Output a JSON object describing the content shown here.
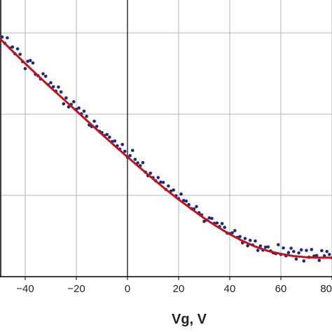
{
  "chart_data": {
    "type": "scatter",
    "title": "",
    "xlabel": "Vg, V",
    "ylabel": "",
    "xlim": [
      -50,
      80
    ],
    "ylim": [
      0,
      1
    ],
    "grid": true,
    "x_ticks": [
      -40,
      -20,
      0,
      20,
      40,
      60,
      80
    ],
    "x_tick_labels": [
      "−40",
      "−20",
      "0",
      "20",
      "40",
      "60",
      "80"
    ],
    "y_gridlines": [
      0.0,
      0.3,
      0.6,
      0.9
    ],
    "colors": {
      "points": "#1f2a7a",
      "fit": "#c0141c",
      "grid": "#b5b5b5",
      "axes": "#000000"
    },
    "series": [
      {
        "kind": "points",
        "x": [
          -50,
          -49,
          -48,
          -47,
          -46,
          -45,
          -44,
          -43,
          -42,
          -41,
          -40,
          -39,
          -38,
          -37,
          -36,
          -35,
          -34,
          -33,
          -32,
          -31,
          -30,
          -29,
          -28,
          -27,
          -26,
          -25,
          -24,
          -23,
          -22,
          -21,
          -20,
          -19,
          -18,
          -17,
          -16,
          -15,
          -14,
          -13,
          -12,
          -11,
          -10,
          -9,
          -8,
          -7,
          -6,
          -5,
          -4,
          -3,
          -2,
          -1,
          0,
          1,
          2,
          3,
          4,
          5,
          6,
          7,
          8,
          9,
          10,
          11,
          12,
          13,
          14,
          15,
          16,
          17,
          18,
          19,
          20,
          21,
          22,
          23,
          24,
          25,
          26,
          27,
          28,
          29,
          30,
          31,
          32,
          33,
          34,
          35,
          36,
          37,
          38,
          39,
          40,
          41,
          42,
          43,
          44,
          45,
          46,
          47,
          48,
          49,
          50,
          51,
          52,
          53,
          54,
          55,
          56,
          57,
          58,
          59,
          60,
          61,
          62,
          63,
          64,
          65,
          66,
          67,
          68,
          69,
          70,
          71,
          72,
          73,
          74,
          75,
          76,
          77,
          78,
          79,
          80
        ],
        "y": [
          0.853,
          0.885,
          0.862,
          0.882,
          0.844,
          0.848,
          0.823,
          0.841,
          0.821,
          0.794,
          0.768,
          0.795,
          0.798,
          0.789,
          0.747,
          0.742,
          0.73,
          0.749,
          0.74,
          0.709,
          0.716,
          0.701,
          0.685,
          0.7,
          0.682,
          0.638,
          0.66,
          0.627,
          0.636,
          0.646,
          0.618,
          0.623,
          0.601,
          0.611,
          0.592,
          0.56,
          0.554,
          0.574,
          0.555,
          0.537,
          0.532,
          0.521,
          0.525,
          0.515,
          0.499,
          0.501,
          0.483,
          0.471,
          0.488,
          0.463,
          0.441,
          0.447,
          0.466,
          0.433,
          0.42,
          0.41,
          0.421,
          0.386,
          0.373,
          0.382,
          0.366,
          0.354,
          0.366,
          0.349,
          0.348,
          0.322,
          0.335,
          0.316,
          0.32,
          0.299,
          0.288,
          0.305,
          0.281,
          0.279,
          0.266,
          0.251,
          0.25,
          0.259,
          0.236,
          0.228,
          0.204,
          0.209,
          0.217,
          0.215,
          0.197,
          0.198,
          0.185,
          0.196,
          0.182,
          0.161,
          0.159,
          0.162,
          0.17,
          0.145,
          0.148,
          0.125,
          0.141,
          0.114,
          0.134,
          0.117,
          0.132,
          0.097,
          0.113,
          0.098,
          0.109,
          0.11,
          0.095,
          0.088,
          0.085,
          0.118,
          0.082,
          0.106,
          0.077,
          0.089,
          0.105,
          0.093,
          0.065,
          0.088,
          0.099,
          0.058,
          0.097,
          0.072,
          0.1,
          0.076,
          0.078,
          0.06,
          0.096,
          0.077,
          0.093,
          0.082,
          0.069
        ]
      },
      {
        "kind": "fit",
        "x": [
          -50,
          -45,
          -40,
          -35,
          -30,
          -25,
          -20,
          -15,
          -10,
          -5,
          0,
          5,
          10,
          15,
          20,
          25,
          30,
          35,
          40,
          45,
          50,
          55,
          60,
          65,
          70,
          75,
          80
        ],
        "y": [
          0.88,
          0.833,
          0.787,
          0.742,
          0.698,
          0.655,
          0.612,
          0.569,
          0.526,
          0.483,
          0.442,
          0.401,
          0.361,
          0.322,
          0.285,
          0.25,
          0.216,
          0.185,
          0.157,
          0.132,
          0.111,
          0.095,
          0.084,
          0.076,
          0.072,
          0.07,
          0.07
        ]
      }
    ]
  }
}
